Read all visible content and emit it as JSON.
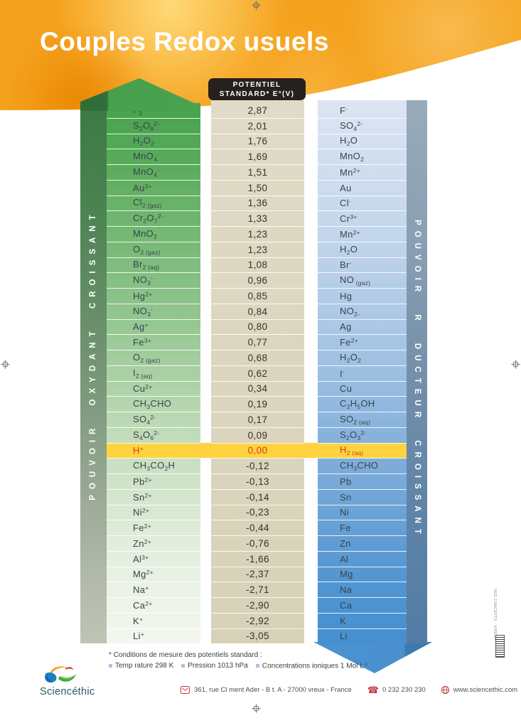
{
  "title": "Couples Redox usuels",
  "potential_header": {
    "line1": "POTENTIEL",
    "line2": "STANDARD* E°(V)"
  },
  "left_axis_label": "POUVOIR OXYDANT CROISSANT",
  "right_axis_label": "POUVOIR R DUCTEUR CROISSANT",
  "table": {
    "columns": [
      "oxydant",
      "potentiel standard E°(V)",
      "réducteur"
    ],
    "rows": [
      {
        "oxidant": "F_2",
        "potential": "2,87",
        "reductant": "F^-",
        "highlight": false
      },
      {
        "oxidant": "S_2O_8^{2-}",
        "potential": "2,01",
        "reductant": "SO_4^{2-}",
        "highlight": false
      },
      {
        "oxidant": "H_2O_2",
        "potential": "1,76",
        "reductant": "H_2O",
        "highlight": false
      },
      {
        "oxidant": "MnO_4^-",
        "potential": "1,69",
        "reductant": "MnO_2",
        "highlight": false
      },
      {
        "oxidant": "MnO_4^-",
        "potential": "1,51",
        "reductant": "Mn^{2+}",
        "highlight": false
      },
      {
        "oxidant": "Au^{3+}",
        "potential": "1,50",
        "reductant": "Au",
        "highlight": false
      },
      {
        "oxidant": "Cl_{2 (gaz)}",
        "potential": "1,36",
        "reductant": "Cl^-",
        "highlight": false
      },
      {
        "oxidant": "Cr_2O_7^{2-}",
        "potential": "1,33",
        "reductant": "Cr^{3+}",
        "highlight": false
      },
      {
        "oxidant": "MnO_2",
        "potential": "1,23",
        "reductant": "Mn^{2+}",
        "highlight": false
      },
      {
        "oxidant": "O_{2 (gaz)}",
        "potential": "1,23",
        "reductant": "H_2O",
        "highlight": false
      },
      {
        "oxidant": "Br_{2 (aq)}",
        "potential": "1,08",
        "reductant": "Br^-",
        "highlight": false
      },
      {
        "oxidant": "NO_3^-",
        "potential": "0,96",
        "reductant": "NO_{ (gaz)}",
        "highlight": false
      },
      {
        "oxidant": "Hg^{2+}",
        "potential": "0,85",
        "reductant": "Hg",
        "highlight": false
      },
      {
        "oxidant": "NO_3^-",
        "potential": "0,84",
        "reductant": "NO_{2-}",
        "highlight": false
      },
      {
        "oxidant": "Ag^+",
        "potential": "0,80",
        "reductant": "Ag",
        "highlight": false
      },
      {
        "oxidant": "Fe^{3+}",
        "potential": "0,77",
        "reductant": "Fe^{2+}",
        "highlight": false
      },
      {
        "oxidant": "O_{2 (gaz)}",
        "potential": "0,68",
        "reductant": "H_2O_2",
        "highlight": false
      },
      {
        "oxidant": "I_{2 (aq)}",
        "potential": "0,62",
        "reductant": "I^-",
        "highlight": false
      },
      {
        "oxidant": "Cu^{2+}",
        "potential": "0,34",
        "reductant": "Cu",
        "highlight": false
      },
      {
        "oxidant": "CH_3CHO",
        "potential": "0,19",
        "reductant": "C_2H_5OH",
        "highlight": false
      },
      {
        "oxidant": "SO_4^{2-}",
        "potential": "0,17",
        "reductant": "SO_{2 (aq)}",
        "highlight": false
      },
      {
        "oxidant": "S_4O_6^{2-}",
        "potential": "0,09",
        "reductant": "S_2O_3^{2-}",
        "highlight": false
      },
      {
        "oxidant": "H^+",
        "potential": "0,00",
        "reductant": "H_{2 (aq)}",
        "highlight": true
      },
      {
        "oxidant": "CH_3CO_2H",
        "potential": "-0,12",
        "reductant": "CH_3CHO",
        "highlight": false
      },
      {
        "oxidant": "Pb^{2+}",
        "potential": "-0,13",
        "reductant": "Pb",
        "highlight": false
      },
      {
        "oxidant": "Sn^{2+}",
        "potential": "-0,14",
        "reductant": "Sn",
        "highlight": false
      },
      {
        "oxidant": "Ni^{2+}",
        "potential": "-0,23",
        "reductant": "Ni",
        "highlight": false
      },
      {
        "oxidant": "Fe^{2+}",
        "potential": "-0,44",
        "reductant": "Fe",
        "highlight": false
      },
      {
        "oxidant": "Zn^{2+}",
        "potential": "-0,76",
        "reductant": "Zn",
        "highlight": false
      },
      {
        "oxidant": "Al^{3+}",
        "potential": "-1,66",
        "reductant": "Al",
        "highlight": false
      },
      {
        "oxidant": "Mg^{2+}",
        "potential": "-2,37",
        "reductant": "Mg",
        "highlight": false
      },
      {
        "oxidant": "Na^+",
        "potential": "-2,71",
        "reductant": "Na",
        "highlight": false
      },
      {
        "oxidant": "Ca^{2+}",
        "potential": "-2,90",
        "reductant": "Ca",
        "highlight": false
      },
      {
        "oxidant": "K^+",
        "potential": "-2,92",
        "reductant": "K",
        "highlight": false
      },
      {
        "oxidant": "Li^+",
        "potential": "-3,05",
        "reductant": "Li",
        "highlight": false
      }
    ]
  },
  "footnote": {
    "title": "* Conditions de mesure des potentiels standard :",
    "items": [
      "Temp rature 298 K",
      "Pression 1013 hPa",
      "Concentrations ioniques 1 Mol L^{-1}"
    ]
  },
  "footer": {
    "brand": "Sciencéthic",
    "address": "361, rue Cl ment Ader - B t. A - 27000  vreux - France",
    "phone": "0 232 230 230",
    "website": "www.sciencethic.com"
  },
  "credits": {
    "vertical_text": "SED CONCEPTS · VIREUX"
  },
  "colors": {
    "header_orange": "#f5a31f",
    "highlight_yellow": "#ffd23f",
    "highlight_text": "#d23c18",
    "green_top": "#46a44c",
    "blue_bottom": "#4590cf",
    "beige": "#ddd7c0",
    "black_box": "#26211f",
    "footer_red": "#c23440",
    "bullet_blue": "#a9c4dd"
  }
}
